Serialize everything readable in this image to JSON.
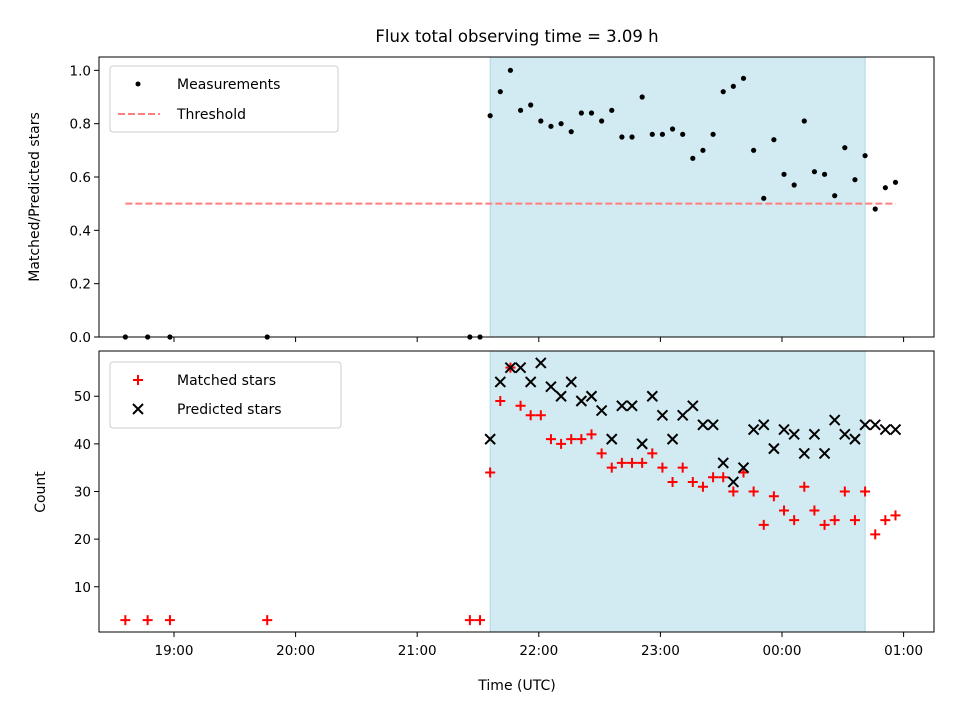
{
  "title": "Flux total observing time = 3.09 h",
  "colors": {
    "shade": "#add8e6",
    "threshold": "#ff7f7f",
    "measurements": "#000000",
    "matched": "#ff0000",
    "predicted": "#000000"
  },
  "top": {
    "ylabel": "Matched/Predicted stars",
    "legend": {
      "measurements": "Measurements",
      "threshold": "Threshold"
    }
  },
  "bottom": {
    "ylabel": "Count",
    "xlabel": "Time (UTC)",
    "legend": {
      "matched": "Matched stars",
      "predicted": "Predicted stars"
    }
  },
  "chart_data": [
    {
      "type": "scatter",
      "panel": "top",
      "ylabel": "Matched/Predicted stars",
      "ylim": [
        0.0,
        1.05
      ],
      "yticks": [
        0.0,
        0.2,
        0.4,
        0.6,
        0.8,
        1.0
      ],
      "ytick_labels": [
        "0.0",
        "0.2",
        "0.4",
        "0.6",
        "0.8",
        "1.0"
      ],
      "xlim": [
        "18:23",
        "01:15"
      ],
      "shaded_span": [
        "21:36",
        "00:41"
      ],
      "threshold": {
        "name": "Threshold",
        "y": 0.5,
        "x": [
          "18:36",
          "00:56"
        ]
      },
      "legend_position": "top-left",
      "series": [
        {
          "name": "Measurements",
          "x": [
            "18:36",
            "18:47",
            "18:58",
            "19:46",
            "21:26",
            "21:31",
            "21:36",
            "21:41",
            "21:46",
            "21:51",
            "21:56",
            "22:01",
            "22:06",
            "22:11",
            "22:16",
            "22:21",
            "22:26",
            "22:31",
            "22:36",
            "22:41",
            "22:46",
            "22:51",
            "22:56",
            "23:01",
            "23:06",
            "23:11",
            "23:16",
            "23:21",
            "23:26",
            "23:31",
            "23:36",
            "23:41",
            "23:46",
            "23:51",
            "23:56",
            "00:01",
            "00:06",
            "00:11",
            "00:16",
            "00:21",
            "00:26",
            "00:31",
            "00:36",
            "00:41",
            "00:46",
            "00:51",
            "00:56"
          ],
          "y": [
            0,
            0,
            0,
            0,
            0,
            0,
            0.83,
            0.92,
            1.0,
            0.85,
            0.87,
            0.81,
            0.79,
            0.8,
            0.77,
            0.84,
            0.84,
            0.81,
            0.85,
            0.75,
            0.75,
            0.9,
            0.76,
            0.76,
            0.78,
            0.76,
            0.67,
            0.7,
            0.76,
            0.92,
            0.94,
            0.97,
            0.7,
            0.52,
            0.74,
            0.61,
            0.57,
            0.81,
            0.62,
            0.61,
            0.53,
            0.71,
            0.59,
            0.68,
            0.48,
            0.56,
            0.58
          ]
        }
      ]
    },
    {
      "type": "scatter",
      "panel": "bottom",
      "ylabel": "Count",
      "xlabel": "Time (UTC)",
      "ylim": [
        0.5,
        59.5
      ],
      "yticks": [
        10,
        20,
        30,
        40,
        50
      ],
      "ytick_labels": [
        "10",
        "20",
        "30",
        "40",
        "50"
      ],
      "xlim": [
        "18:23",
        "01:15"
      ],
      "xticks": [
        "19:00",
        "20:00",
        "21:00",
        "22:00",
        "23:00",
        "00:00",
        "01:00"
      ],
      "xtick_labels": [
        "19:00",
        "20:00",
        "21:00",
        "22:00",
        "23:00",
        "00:00",
        "01:00"
      ],
      "shaded_span": [
        "21:36",
        "00:41"
      ],
      "legend_position": "top-left",
      "series": [
        {
          "name": "Matched stars",
          "x": [
            "18:36",
            "18:47",
            "18:58",
            "19:46",
            "21:26",
            "21:31",
            "21:36",
            "21:41",
            "21:46",
            "21:51",
            "21:56",
            "22:01",
            "22:06",
            "22:11",
            "22:16",
            "22:21",
            "22:26",
            "22:31",
            "22:36",
            "22:41",
            "22:46",
            "22:51",
            "22:56",
            "23:01",
            "23:06",
            "23:11",
            "23:16",
            "23:21",
            "23:26",
            "23:31",
            "23:36",
            "23:41",
            "23:46",
            "23:51",
            "23:56",
            "00:01",
            "00:06",
            "00:11",
            "00:16",
            "00:21",
            "00:26",
            "00:31",
            "00:36",
            "00:41",
            "00:46",
            "00:51",
            "00:56"
          ],
          "y": [
            3,
            3,
            3,
            3,
            3,
            3,
            34,
            49,
            56,
            48,
            46,
            46,
            41,
            40,
            41,
            41,
            42,
            38,
            35,
            36,
            36,
            36,
            38,
            35,
            32,
            35,
            32,
            31,
            33,
            33,
            30,
            34,
            30,
            23,
            29,
            26,
            24,
            31,
            26,
            23,
            24,
            30,
            24,
            30,
            21,
            24,
            25
          ]
        },
        {
          "name": "Predicted stars",
          "x": [
            "21:36",
            "21:41",
            "21:46",
            "21:51",
            "21:56",
            "22:01",
            "22:06",
            "22:11",
            "22:16",
            "22:21",
            "22:26",
            "22:31",
            "22:36",
            "22:41",
            "22:46",
            "22:51",
            "22:56",
            "23:01",
            "23:06",
            "23:11",
            "23:16",
            "23:21",
            "23:26",
            "23:31",
            "23:36",
            "23:41",
            "23:46",
            "23:51",
            "23:56",
            "00:01",
            "00:06",
            "00:11",
            "00:16",
            "00:21",
            "00:26",
            "00:31",
            "00:36",
            "00:41",
            "00:46",
            "00:51",
            "00:56"
          ],
          "y": [
            41,
            53,
            56,
            56,
            53,
            57,
            52,
            50,
            53,
            49,
            50,
            47,
            41,
            48,
            48,
            40,
            50,
            46,
            41,
            46,
            48,
            44,
            44,
            36,
            32,
            35,
            43,
            44,
            39,
            43,
            42,
            38,
            42,
            38,
            45,
            42,
            41,
            44,
            44,
            43,
            43
          ]
        }
      ]
    }
  ]
}
